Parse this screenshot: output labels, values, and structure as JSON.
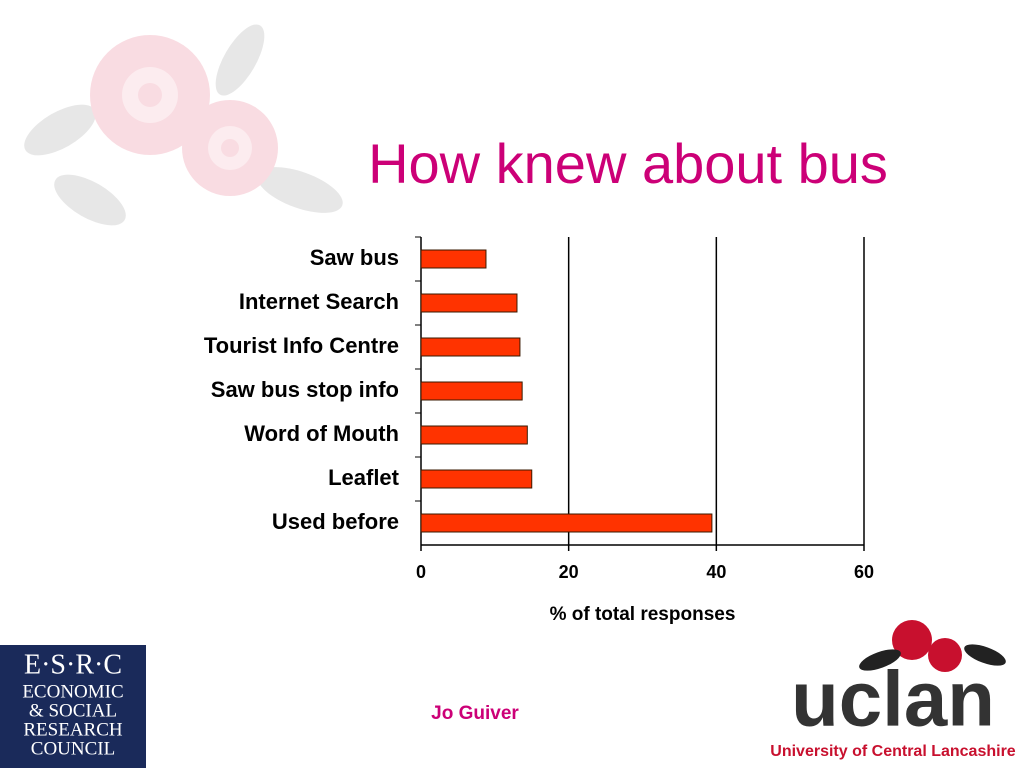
{
  "chart_data": {
    "type": "bar",
    "orientation": "horizontal",
    "title": "How knew about bus",
    "categories": [
      "Saw bus",
      "Internet Search",
      "Tourist Info Centre",
      "Saw bus stop info",
      "Word of Mouth",
      "Leaflet",
      "Used before"
    ],
    "values": [
      8.8,
      13.0,
      13.4,
      13.7,
      14.4,
      15.0,
      39.4
    ],
    "color": "#ff3300",
    "xlabel": "% of total responses",
    "xlim": [
      0,
      60
    ],
    "xticks": [
      0,
      20,
      40,
      60
    ],
    "grid": true
  },
  "footer": {
    "author": "Jo Guiver"
  },
  "logos": {
    "esrc": {
      "abbr": "E·S·R·C",
      "lines": [
        "ECONOMIC",
        "& SOCIAL",
        "RESEARCH",
        "COUNCIL"
      ]
    },
    "uclan": {
      "name": "uclan",
      "full": "University of Central Lancashire"
    }
  }
}
